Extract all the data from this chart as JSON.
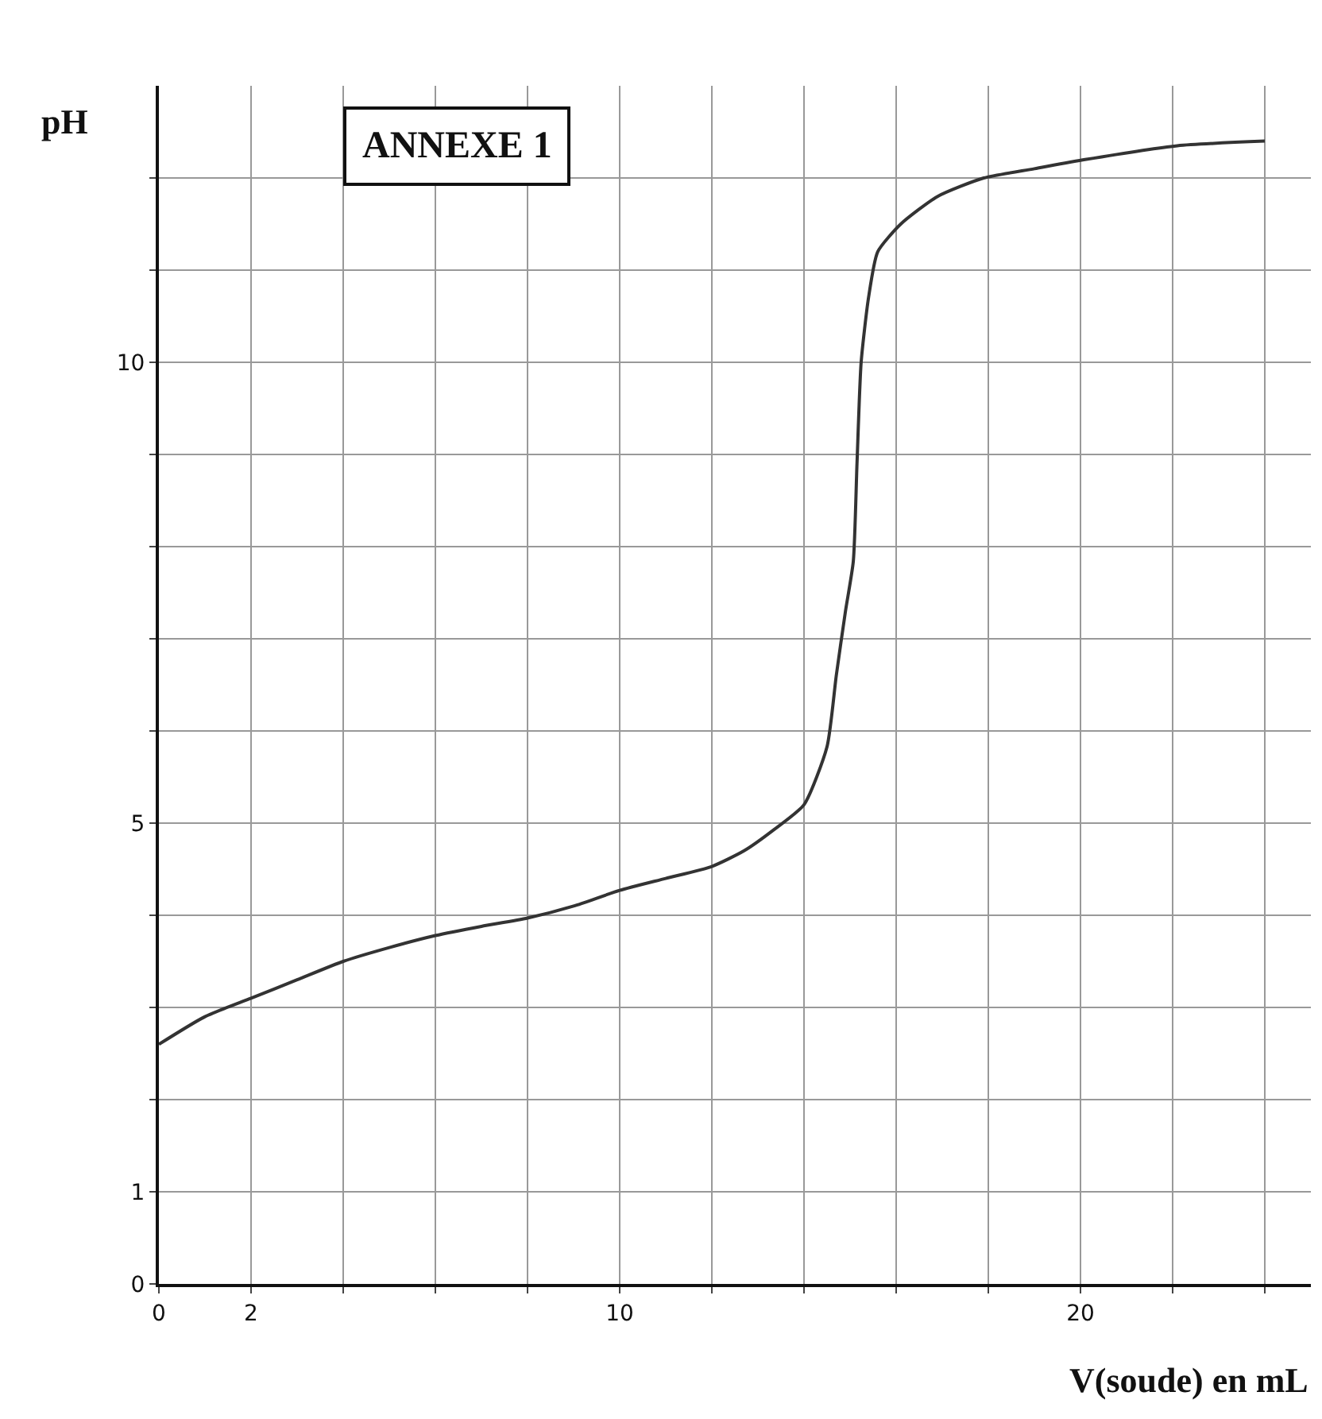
{
  "chart_data": {
    "type": "line",
    "title": "ANNEXE 1",
    "xlabel": "V(soude) en mL",
    "ylabel": "pH",
    "x": [
      0,
      1,
      2,
      3,
      4,
      5,
      6,
      7,
      8,
      9,
      10,
      11,
      12,
      12.7,
      13.35,
      14,
      14.5,
      14.7,
      14.9,
      15.07,
      15.15,
      15.24,
      15.4,
      15.6,
      16.1,
      16.9,
      17.9,
      19,
      20.1,
      22.1,
      24
    ],
    "series": [
      {
        "color": "#333333",
        "values": [
          2.6,
          2.9,
          3.1,
          3.3,
          3.5,
          3.65,
          3.78,
          3.88,
          3.97,
          4.1,
          4.27,
          4.4,
          4.53,
          4.7,
          4.93,
          5.2,
          5.83,
          6.6,
          7.3,
          7.84,
          8.9,
          10.0,
          10.7,
          11.2,
          11.5,
          11.8,
          12.0,
          12.1,
          12.2,
          12.35,
          12.4
        ]
      }
    ],
    "xlim": [
      0,
      25
    ],
    "ylim": [
      0,
      13
    ],
    "xticks": [
      0,
      2,
      {
        "value": 4,
        "label": null
      },
      {
        "value": 6,
        "label": null
      },
      {
        "value": 8,
        "label": null
      },
      10,
      {
        "value": 12,
        "label": null
      },
      {
        "value": 14,
        "label": null
      },
      {
        "value": 16,
        "label": null
      },
      {
        "value": 18,
        "label": null
      },
      20,
      {
        "value": 22,
        "label": null
      },
      {
        "value": 24,
        "label": null
      }
    ],
    "yticks": [
      0,
      1,
      {
        "value": 2,
        "label": null
      },
      {
        "value": 3,
        "label": null
      },
      {
        "value": 4,
        "label": null
      },
      5,
      {
        "value": 6,
        "label": null
      },
      {
        "value": 7,
        "label": null
      },
      {
        "value": 8,
        "label": null
      },
      {
        "value": 9,
        "label": null
      },
      10,
      {
        "value": 11,
        "label": null
      },
      {
        "value": 12,
        "label": null
      }
    ],
    "grid": true,
    "marker": "none",
    "line_style": "solid"
  }
}
